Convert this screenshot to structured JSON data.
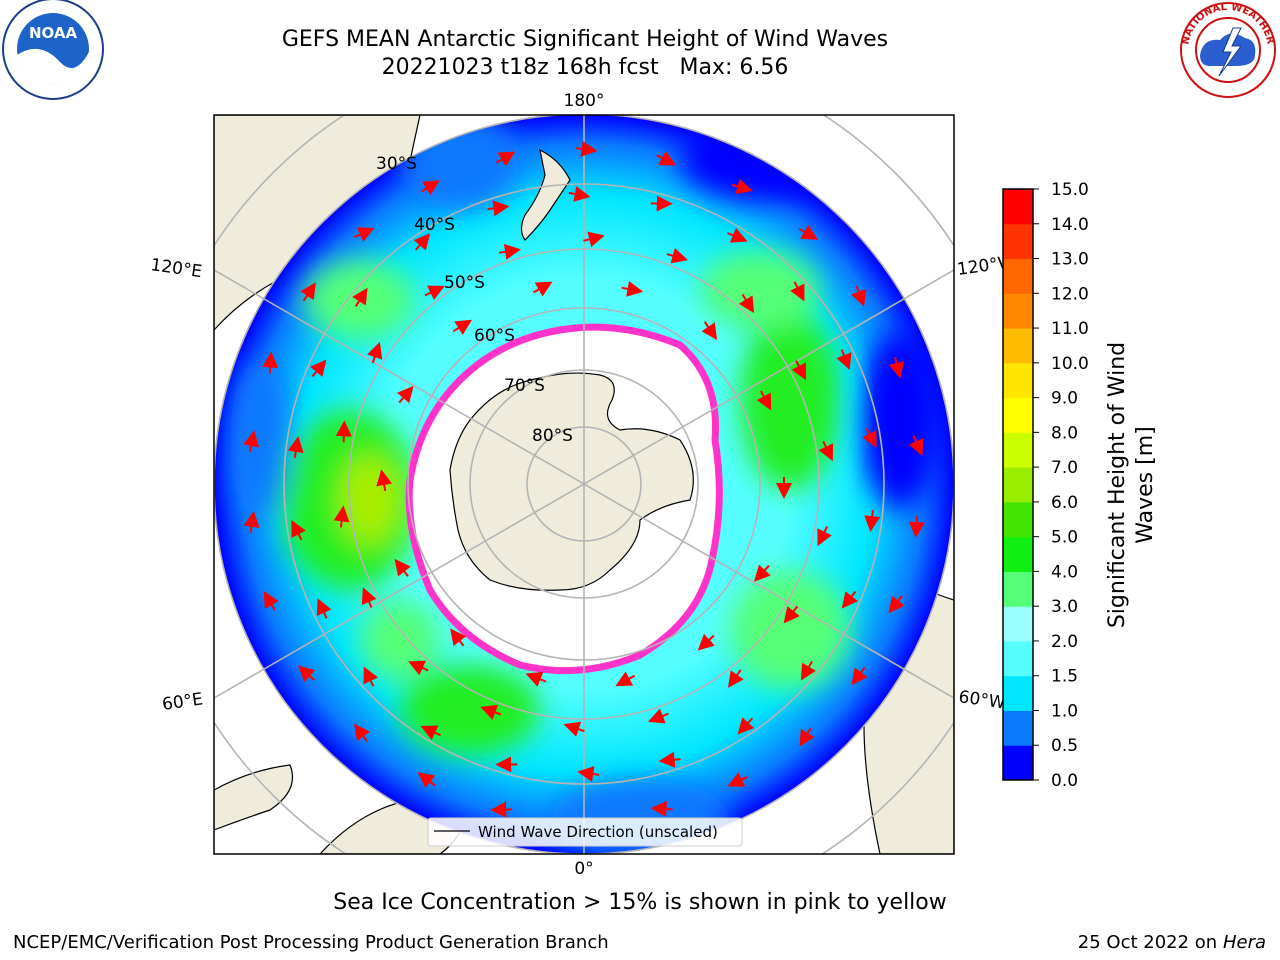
{
  "title": {
    "line1": "GEFS MEAN Antarctic Significant Height of Wind Waves",
    "line2": "20221023 t18z 168h fcst   Max: 6.56"
  },
  "map": {
    "longitude_labels": {
      "top": "180°",
      "bottom": "0°",
      "upper_left": "120°E",
      "upper_right": "120°W",
      "lower_left": "60°E",
      "lower_right": "60°W"
    },
    "latitude_labels": [
      "30°S",
      "40°S",
      "50°S",
      "60°S",
      "70°S",
      "80°S"
    ],
    "legend_label": "Wind Wave Direction (unscaled)",
    "colors": {
      "land": "#efecdc",
      "ice": "#ffffff",
      "arrow": "#ff0000",
      "grid": "#b4b4b4",
      "ice_edge": "#ff33cc"
    }
  },
  "colorbar": {
    "title_line1": "Significant Height of Wind",
    "title_line2": "Waves [m]",
    "ticks": [
      "0.0",
      "0.5",
      "1.0",
      "1.5",
      "2.0",
      "3.0",
      "4.0",
      "5.0",
      "6.0",
      "7.0",
      "8.0",
      "9.0",
      "10.0",
      "11.0",
      "12.0",
      "13.0",
      "14.0",
      "15.0"
    ],
    "colors": [
      "#0000ff",
      "#0a78ff",
      "#00e6ff",
      "#55ffff",
      "#99ffff",
      "#55ff77",
      "#11ee11",
      "#44e600",
      "#99ee00",
      "#ccff00",
      "#ffff00",
      "#ffe600",
      "#ffbb00",
      "#ff8800",
      "#ff6600",
      "#ff3300",
      "#ff0000"
    ]
  },
  "caption": "Sea Ice Concentration > 15% is shown in pink to yellow",
  "footer": {
    "credit": "NCEP/EMC/Verification Post Processing Product Generation Branch",
    "date": "25 Oct 2022 on",
    "machine": "Hera"
  },
  "logos": {
    "left": "NOAA",
    "right": "NATIONAL WEATHER SERVICE"
  }
}
